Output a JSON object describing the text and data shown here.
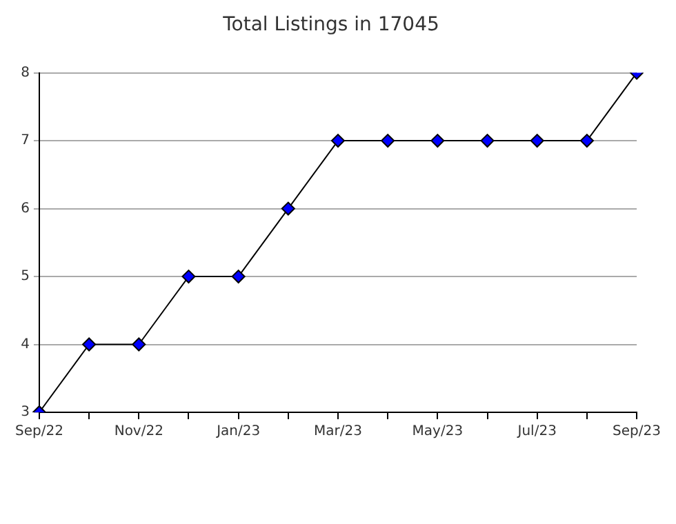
{
  "chart_data": {
    "type": "line",
    "title": "Total Listings in 17045",
    "categories": [
      "Sep/22",
      null,
      "Nov/22",
      null,
      "Jan/23",
      null,
      "Mar/23",
      null,
      "May/23",
      null,
      "Jul/23",
      null,
      "Sep/23"
    ],
    "series": [
      {
        "color": "#0000ff",
        "values": [
          3,
          4,
          4,
          5,
          5,
          6,
          7,
          7,
          7,
          7,
          7,
          7,
          8
        ]
      }
    ],
    "ylim": [
      3,
      8
    ],
    "yticks": [
      3,
      4,
      5,
      6,
      7,
      8
    ],
    "grid": "y",
    "legend": false,
    "marker": "diamond",
    "line_style": "solid"
  }
}
